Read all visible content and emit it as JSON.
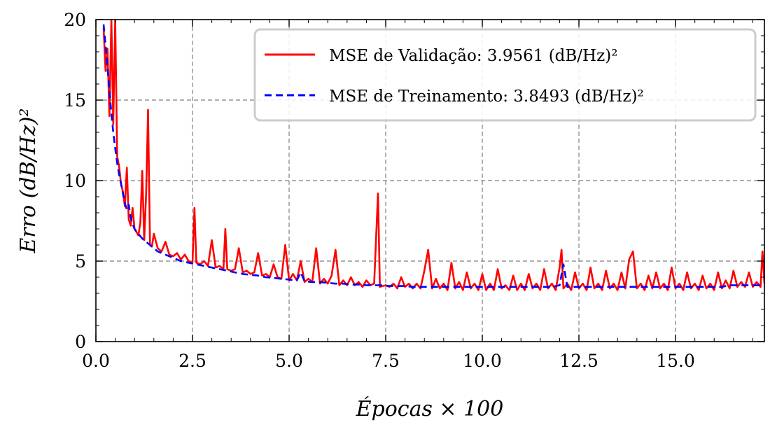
{
  "chart_data": {
    "type": "line",
    "xlabel": "Épocas × 100",
    "ylabel": "Erro (dB/Hz)²",
    "xlim": [
      0,
      17.3
    ],
    "ylim": [
      0,
      20
    ],
    "xticks": [
      {
        "value": 0,
        "label": "0.0"
      },
      {
        "value": 2.5,
        "label": "2.5"
      },
      {
        "value": 5,
        "label": "5.0"
      },
      {
        "value": 7.5,
        "label": "7.5"
      },
      {
        "value": 10,
        "label": "10.0"
      },
      {
        "value": 12.5,
        "label": "12.5"
      },
      {
        "value": 15,
        "label": "15.0"
      }
    ],
    "yticks": [
      {
        "value": 0,
        "label": "0"
      },
      {
        "value": 5,
        "label": "5"
      },
      {
        "value": 10,
        "label": "10"
      },
      {
        "value": 15,
        "label": "15"
      },
      {
        "value": 20,
        "label": "20"
      }
    ],
    "grid": true,
    "legend_position": "top-right",
    "series": [
      {
        "name": "MSE de Validação: 3.9561 (dB/Hz)²",
        "color": "#ff0000",
        "style": "solid",
        "points": [
          [
            0.2,
            19.5
          ],
          [
            0.25,
            16.8
          ],
          [
            0.3,
            18.2
          ],
          [
            0.35,
            14.0
          ],
          [
            0.4,
            20.0
          ],
          [
            0.45,
            13.5
          ],
          [
            0.5,
            20.0
          ],
          [
            0.55,
            11.5
          ],
          [
            0.6,
            10.9
          ],
          [
            0.65,
            9.8
          ],
          [
            0.7,
            9.3
          ],
          [
            0.75,
            8.4
          ],
          [
            0.8,
            10.8
          ],
          [
            0.85,
            7.6
          ],
          [
            0.9,
            7.2
          ],
          [
            0.95,
            8.3
          ],
          [
            1.0,
            7.0
          ],
          [
            1.05,
            6.8
          ],
          [
            1.1,
            6.6
          ],
          [
            1.15,
            7.4
          ],
          [
            1.2,
            10.6
          ],
          [
            1.25,
            6.3
          ],
          [
            1.3,
            9.2
          ],
          [
            1.35,
            14.4
          ],
          [
            1.4,
            6.0
          ],
          [
            1.45,
            5.9
          ],
          [
            1.5,
            6.7
          ],
          [
            1.6,
            5.8
          ],
          [
            1.7,
            5.6
          ],
          [
            1.8,
            6.2
          ],
          [
            1.9,
            5.4
          ],
          [
            2.0,
            5.3
          ],
          [
            2.1,
            5.5
          ],
          [
            2.2,
            5.1
          ],
          [
            2.3,
            5.4
          ],
          [
            2.4,
            5.0
          ],
          [
            2.5,
            4.9
          ],
          [
            2.55,
            8.3
          ],
          [
            2.6,
            4.9
          ],
          [
            2.7,
            4.8
          ],
          [
            2.8,
            5.0
          ],
          [
            2.9,
            4.7
          ],
          [
            3.0,
            6.3
          ],
          [
            3.1,
            4.6
          ],
          [
            3.2,
            4.7
          ],
          [
            3.3,
            4.5
          ],
          [
            3.35,
            7.0
          ],
          [
            3.4,
            4.5
          ],
          [
            3.5,
            4.4
          ],
          [
            3.6,
            4.5
          ],
          [
            3.7,
            5.8
          ],
          [
            3.8,
            4.3
          ],
          [
            3.9,
            4.4
          ],
          [
            4.0,
            4.2
          ],
          [
            4.1,
            4.3
          ],
          [
            4.2,
            5.5
          ],
          [
            4.3,
            4.1
          ],
          [
            4.4,
            4.2
          ],
          [
            4.5,
            4.0
          ],
          [
            4.6,
            4.8
          ],
          [
            4.7,
            4.0
          ],
          [
            4.8,
            3.9
          ],
          [
            4.9,
            6.0
          ],
          [
            5.0,
            3.8
          ],
          [
            5.1,
            4.2
          ],
          [
            5.2,
            3.8
          ],
          [
            5.3,
            5.0
          ],
          [
            5.4,
            3.7
          ],
          [
            5.5,
            3.9
          ],
          [
            5.6,
            3.7
          ],
          [
            5.7,
            5.8
          ],
          [
            5.8,
            3.6
          ],
          [
            5.9,
            3.9
          ],
          [
            6.0,
            3.6
          ],
          [
            6.1,
            4.1
          ],
          [
            6.2,
            5.7
          ],
          [
            6.3,
            3.5
          ],
          [
            6.4,
            3.8
          ],
          [
            6.5,
            3.5
          ],
          [
            6.6,
            4.0
          ],
          [
            6.7,
            3.5
          ],
          [
            6.8,
            3.7
          ],
          [
            6.9,
            3.4
          ],
          [
            7.0,
            3.8
          ],
          [
            7.1,
            3.5
          ],
          [
            7.2,
            3.6
          ],
          [
            7.3,
            9.2
          ],
          [
            7.35,
            3.4
          ],
          [
            7.5,
            3.5
          ],
          [
            7.6,
            3.4
          ],
          [
            7.7,
            3.6
          ],
          [
            7.8,
            3.3
          ],
          [
            7.9,
            4.0
          ],
          [
            8.0,
            3.4
          ],
          [
            8.1,
            3.6
          ],
          [
            8.2,
            3.3
          ],
          [
            8.3,
            3.6
          ],
          [
            8.4,
            3.3
          ],
          [
            8.5,
            4.4
          ],
          [
            8.6,
            5.7
          ],
          [
            8.7,
            3.3
          ],
          [
            8.8,
            3.9
          ],
          [
            8.9,
            3.3
          ],
          [
            9.0,
            3.6
          ],
          [
            9.1,
            3.2
          ],
          [
            9.2,
            4.9
          ],
          [
            9.3,
            3.3
          ],
          [
            9.4,
            3.7
          ],
          [
            9.5,
            3.2
          ],
          [
            9.6,
            4.3
          ],
          [
            9.7,
            3.3
          ],
          [
            9.8,
            3.6
          ],
          [
            9.9,
            3.2
          ],
          [
            10.0,
            4.2
          ],
          [
            10.1,
            3.2
          ],
          [
            10.2,
            3.6
          ],
          [
            10.3,
            3.2
          ],
          [
            10.4,
            4.5
          ],
          [
            10.5,
            3.3
          ],
          [
            10.6,
            3.5
          ],
          [
            10.7,
            3.2
          ],
          [
            10.8,
            4.1
          ],
          [
            10.9,
            3.2
          ],
          [
            11.0,
            3.6
          ],
          [
            11.1,
            3.2
          ],
          [
            11.2,
            4.2
          ],
          [
            11.3,
            3.3
          ],
          [
            11.4,
            3.6
          ],
          [
            11.5,
            3.2
          ],
          [
            11.6,
            4.5
          ],
          [
            11.7,
            3.3
          ],
          [
            11.8,
            3.6
          ],
          [
            11.9,
            3.2
          ],
          [
            12.0,
            4.6
          ],
          [
            12.05,
            5.7
          ],
          [
            12.1,
            3.3
          ],
          [
            12.2,
            3.6
          ],
          [
            12.3,
            3.2
          ],
          [
            12.4,
            4.3
          ],
          [
            12.5,
            3.3
          ],
          [
            12.6,
            3.6
          ],
          [
            12.7,
            3.2
          ],
          [
            12.8,
            4.6
          ],
          [
            12.9,
            3.3
          ],
          [
            13.0,
            3.6
          ],
          [
            13.1,
            3.2
          ],
          [
            13.2,
            4.4
          ],
          [
            13.3,
            3.3
          ],
          [
            13.4,
            3.6
          ],
          [
            13.5,
            3.2
          ],
          [
            13.6,
            4.3
          ],
          [
            13.7,
            3.3
          ],
          [
            13.8,
            5.1
          ],
          [
            13.9,
            5.6
          ],
          [
            14.0,
            3.3
          ],
          [
            14.1,
            3.6
          ],
          [
            14.2,
            3.2
          ],
          [
            14.3,
            4.1
          ],
          [
            14.4,
            3.3
          ],
          [
            14.5,
            4.3
          ],
          [
            14.6,
            3.3
          ],
          [
            14.7,
            3.6
          ],
          [
            14.8,
            3.2
          ],
          [
            14.9,
            4.6
          ],
          [
            15.0,
            3.3
          ],
          [
            15.1,
            3.6
          ],
          [
            15.2,
            3.2
          ],
          [
            15.3,
            4.3
          ],
          [
            15.4,
            3.3
          ],
          [
            15.5,
            3.6
          ],
          [
            15.6,
            3.2
          ],
          [
            15.7,
            4.1
          ],
          [
            15.8,
            3.3
          ],
          [
            15.9,
            3.6
          ],
          [
            16.0,
            3.2
          ],
          [
            16.1,
            4.3
          ],
          [
            16.2,
            3.3
          ],
          [
            16.3,
            3.8
          ],
          [
            16.4,
            3.3
          ],
          [
            16.5,
            4.4
          ],
          [
            16.6,
            3.4
          ],
          [
            16.7,
            3.7
          ],
          [
            16.8,
            3.4
          ],
          [
            16.9,
            4.3
          ],
          [
            17.0,
            3.4
          ],
          [
            17.1,
            3.7
          ],
          [
            17.2,
            3.4
          ],
          [
            17.25,
            5.6
          ],
          [
            17.3,
            3.6
          ]
        ]
      },
      {
        "name": "MSE de Treinamento: 3.8493 (dB/Hz)²",
        "color": "#0000ff",
        "style": "dashed",
        "points": [
          [
            0.2,
            19.7
          ],
          [
            0.25,
            18.4
          ],
          [
            0.3,
            17.0
          ],
          [
            0.35,
            15.6
          ],
          [
            0.4,
            14.2
          ],
          [
            0.45,
            13.0
          ],
          [
            0.5,
            12.0
          ],
          [
            0.55,
            11.1
          ],
          [
            0.6,
            10.4
          ],
          [
            0.65,
            9.8
          ],
          [
            0.7,
            9.2
          ],
          [
            0.75,
            8.6
          ],
          [
            0.8,
            8.2
          ],
          [
            0.85,
            8.5
          ],
          [
            0.9,
            7.7
          ],
          [
            0.95,
            7.3
          ],
          [
            1.0,
            7.0
          ],
          [
            1.1,
            6.7
          ],
          [
            1.2,
            6.4
          ],
          [
            1.3,
            6.2
          ],
          [
            1.4,
            6.0
          ],
          [
            1.5,
            5.8
          ],
          [
            1.6,
            5.6
          ],
          [
            1.7,
            5.5
          ],
          [
            1.8,
            5.4
          ],
          [
            1.9,
            5.3
          ],
          [
            2.0,
            5.2
          ],
          [
            2.2,
            5.0
          ],
          [
            2.4,
            4.9
          ],
          [
            2.6,
            4.8
          ],
          [
            2.8,
            4.7
          ],
          [
            3.0,
            4.6
          ],
          [
            3.2,
            4.5
          ],
          [
            3.4,
            4.4
          ],
          [
            3.6,
            4.3
          ],
          [
            3.8,
            4.2
          ],
          [
            4.0,
            4.15
          ],
          [
            4.2,
            4.1
          ],
          [
            4.4,
            4.0
          ],
          [
            4.6,
            3.95
          ],
          [
            4.8,
            3.9
          ],
          [
            5.0,
            3.85
          ],
          [
            5.2,
            3.8
          ],
          [
            5.3,
            4.3
          ],
          [
            5.4,
            3.75
          ],
          [
            5.6,
            3.7
          ],
          [
            5.8,
            3.7
          ],
          [
            6.0,
            3.65
          ],
          [
            6.2,
            3.6
          ],
          [
            6.4,
            3.6
          ],
          [
            6.6,
            3.55
          ],
          [
            6.8,
            3.55
          ],
          [
            7.0,
            3.5
          ],
          [
            7.2,
            3.5
          ],
          [
            7.4,
            3.5
          ],
          [
            7.6,
            3.45
          ],
          [
            7.8,
            3.45
          ],
          [
            8.0,
            3.45
          ],
          [
            8.2,
            3.4
          ],
          [
            8.4,
            3.4
          ],
          [
            8.6,
            3.4
          ],
          [
            8.8,
            3.4
          ],
          [
            9.0,
            3.4
          ],
          [
            9.2,
            3.4
          ],
          [
            9.4,
            3.4
          ],
          [
            9.6,
            3.4
          ],
          [
            9.8,
            3.4
          ],
          [
            10.0,
            3.4
          ],
          [
            10.2,
            3.4
          ],
          [
            10.4,
            3.4
          ],
          [
            10.6,
            3.4
          ],
          [
            10.8,
            3.4
          ],
          [
            11.0,
            3.4
          ],
          [
            11.2,
            3.4
          ],
          [
            11.4,
            3.4
          ],
          [
            11.6,
            3.4
          ],
          [
            11.8,
            3.4
          ],
          [
            12.0,
            3.5
          ],
          [
            12.1,
            4.8
          ],
          [
            12.2,
            3.4
          ],
          [
            12.4,
            3.4
          ],
          [
            12.6,
            3.4
          ],
          [
            12.8,
            3.4
          ],
          [
            13.0,
            3.4
          ],
          [
            13.2,
            3.4
          ],
          [
            13.4,
            3.4
          ],
          [
            13.6,
            3.4
          ],
          [
            13.8,
            3.4
          ],
          [
            14.0,
            3.4
          ],
          [
            14.2,
            3.4
          ],
          [
            14.4,
            3.4
          ],
          [
            14.6,
            3.4
          ],
          [
            14.8,
            3.4
          ],
          [
            15.0,
            3.4
          ],
          [
            15.2,
            3.4
          ],
          [
            15.4,
            3.4
          ],
          [
            15.6,
            3.4
          ],
          [
            15.8,
            3.4
          ],
          [
            16.0,
            3.4
          ],
          [
            16.2,
            3.4
          ],
          [
            16.4,
            3.5
          ],
          [
            16.6,
            3.5
          ],
          [
            16.8,
            3.5
          ],
          [
            17.0,
            3.5
          ],
          [
            17.2,
            3.5
          ],
          [
            17.3,
            3.5
          ]
        ]
      }
    ]
  },
  "legend": {
    "validation_label": "MSE de Validação: 3.9561 (dB/Hz)²",
    "training_label": "MSE de Treinamento: 3.8493 (dB/Hz)²"
  }
}
